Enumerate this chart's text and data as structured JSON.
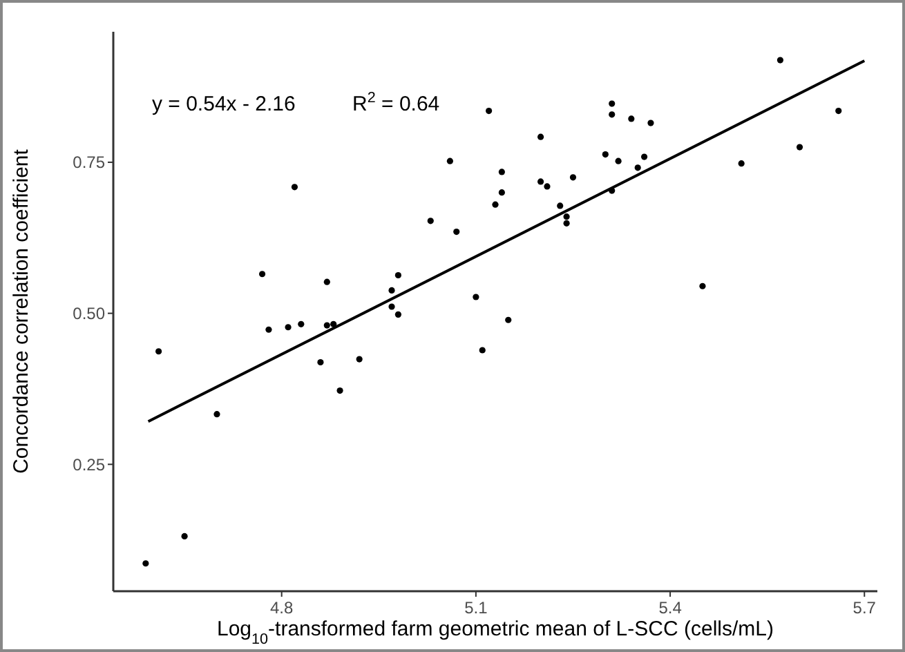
{
  "chart_data": {
    "type": "scatter",
    "xlabel": "Log$_{10}$-transformed farm geometric mean of L-SCC (cells/mL)",
    "ylabel": "Concordance correlation coefficient",
    "xlim": [
      4.54,
      5.72
    ],
    "ylim": [
      0.04,
      0.966
    ],
    "xticks": [
      4.8,
      5.1,
      5.4,
      5.7
    ],
    "yticks": [
      0.25,
      {
        "value": 0.5,
        "label": "0.50"
      },
      0.75
    ],
    "grid": false,
    "annotations": [
      "y = 0.54x - 2.16",
      "R$^{2}$ = 0.64"
    ],
    "series": [
      {
        "color": "#000000",
        "marker": "circle",
        "x": [
          4.59,
          4.65,
          4.61,
          4.7,
          4.77,
          4.78,
          4.81,
          4.83,
          4.82,
          4.87,
          4.86,
          4.88,
          4.87,
          4.89,
          4.92,
          4.97,
          4.97,
          4.98,
          4.98,
          5.03,
          5.06,
          5.07,
          5.1,
          5.11,
          5.12,
          5.13,
          5.14,
          5.14,
          5.15,
          5.2,
          5.2,
          5.21,
          5.23,
          5.24,
          5.24,
          5.25,
          5.3,
          5.31,
          5.31,
          5.31,
          5.32,
          5.34,
          5.35,
          5.37,
          5.36,
          5.45,
          5.51,
          5.57,
          5.6,
          5.66
        ],
        "values": [
          0.086,
          0.131,
          0.437,
          0.333,
          0.565,
          0.473,
          0.477,
          0.482,
          0.709,
          0.552,
          0.419,
          0.482,
          0.48,
          0.372,
          0.424,
          0.511,
          0.538,
          0.563,
          0.498,
          0.653,
          0.752,
          0.635,
          0.527,
          0.439,
          0.835,
          0.68,
          0.7,
          0.734,
          0.489,
          0.792,
          0.718,
          0.71,
          0.678,
          0.649,
          0.66,
          0.725,
          0.763,
          0.847,
          0.829,
          0.703,
          0.752,
          0.822,
          0.741,
          0.815,
          0.759,
          0.545,
          0.748,
          0.919,
          0.775,
          0.835
        ]
      },
      {
        "type": "line",
        "color": "#000000",
        "marker": "none",
        "line_style": "solid",
        "x": [
          4.594,
          5.7
        ],
        "values": [
          0.321,
          0.918
        ]
      }
    ]
  }
}
